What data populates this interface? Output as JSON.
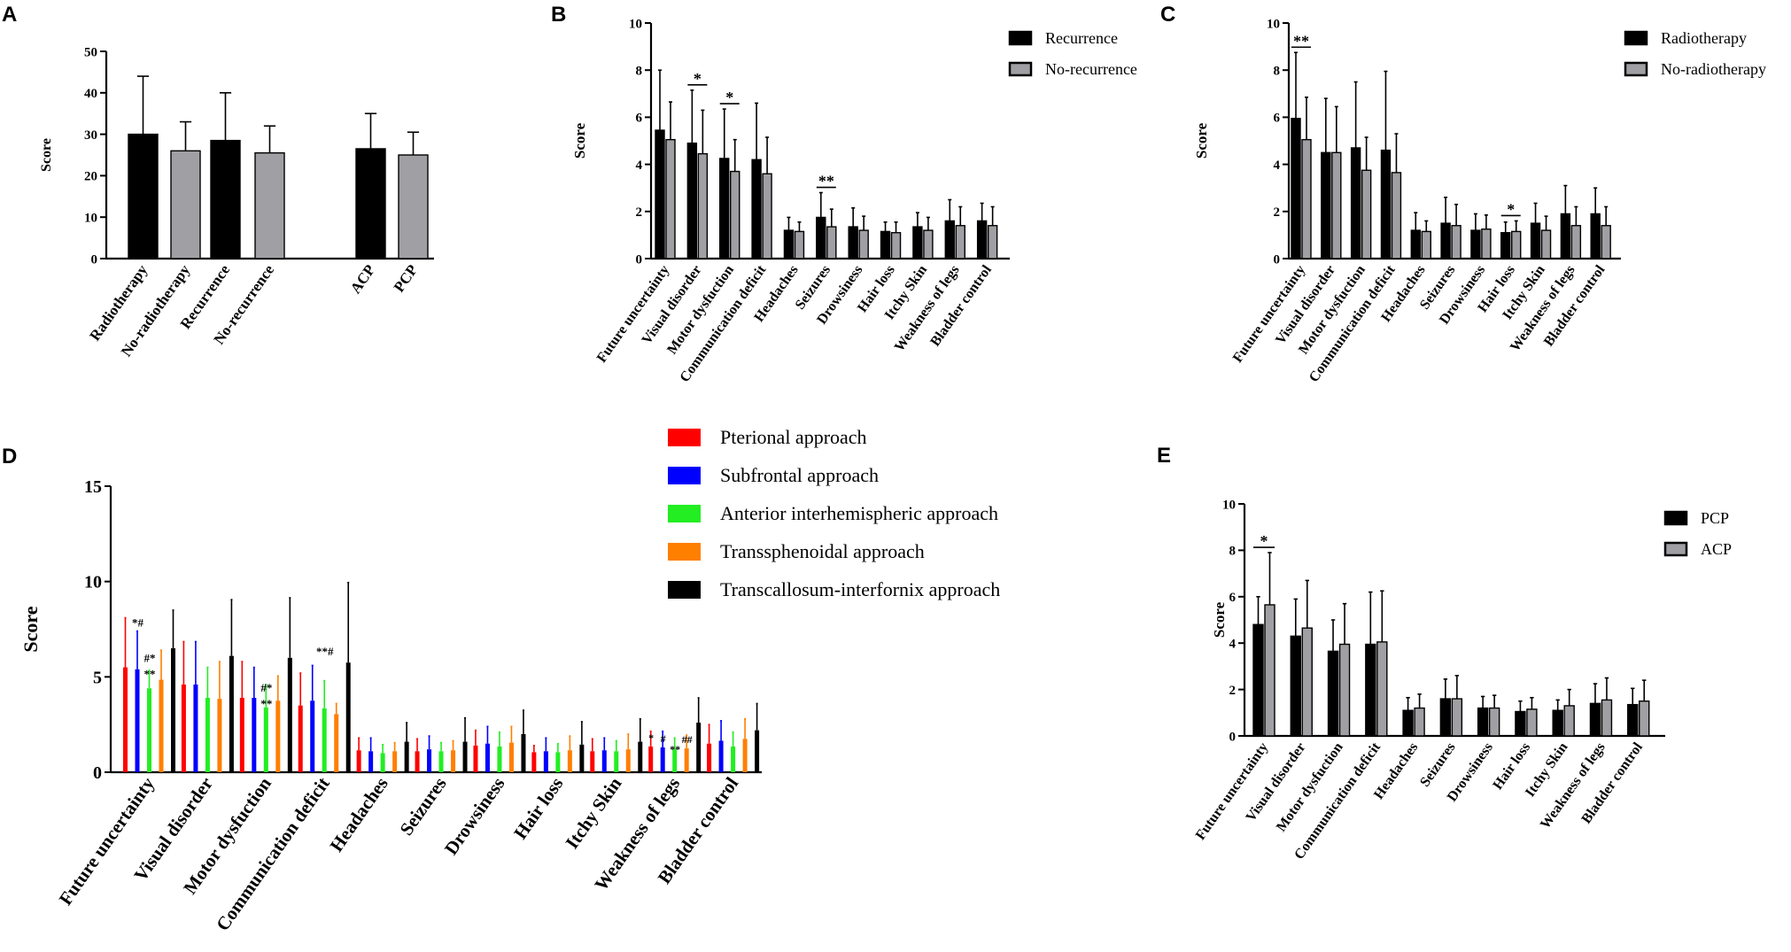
{
  "chart_data": [
    {
      "panel": "A",
      "type": "bar",
      "ylabel": "Score",
      "ylim": [
        0,
        50
      ],
      "yticks": [
        0,
        10,
        20,
        30,
        40,
        50
      ],
      "bars": [
        {
          "label": "Radiotherapy",
          "value": 30,
          "err": 14,
          "color": "#000000"
        },
        {
          "label": "No-radiotherapy",
          "value": 26,
          "err": 7,
          "color": "#a0a0a4"
        },
        {
          "label": "Recurrence",
          "value": 28.5,
          "err": 11.5,
          "color": "#000000"
        },
        {
          "label": "No-recurrence",
          "value": 25.5,
          "err": 6.5,
          "color": "#a0a0a4"
        },
        {
          "label": "ACP",
          "value": 26.5,
          "err": 8.5,
          "color": "#000000"
        },
        {
          "label": "PCP",
          "value": 25,
          "err": 5.5,
          "color": "#a0a0a4"
        }
      ]
    },
    {
      "panel": "B",
      "type": "bar",
      "ylabel": "Score",
      "ylim": [
        0,
        10
      ],
      "yticks": [
        0,
        2,
        4,
        6,
        8,
        10
      ],
      "categories": [
        "Future uncertainty",
        "Visual disorder",
        "Motor dysfuction",
        "Communication deficit",
        "Headaches",
        "Seizures",
        "Drowsiness",
        "Hair loss",
        "Itchy Skin",
        "Weakness of legs",
        "Bladder control"
      ],
      "series": [
        {
          "name": "Recurrence",
          "values": [
            5.45,
            4.9,
            4.25,
            4.2,
            1.2,
            1.75,
            1.35,
            1.15,
            1.35,
            1.6,
            1.6
          ],
          "errors": [
            2.55,
            2.25,
            2.1,
            2.4,
            0.55,
            1.05,
            0.8,
            0.4,
            0.6,
            0.9,
            0.75
          ]
        },
        {
          "name": "No-recurrence",
          "values": [
            5.05,
            4.45,
            3.7,
            3.6,
            1.15,
            1.35,
            1.2,
            1.1,
            1.2,
            1.4,
            1.4
          ],
          "errors": [
            1.6,
            1.85,
            1.35,
            1.55,
            0.4,
            0.75,
            0.6,
            0.45,
            0.55,
            0.8,
            0.8
          ]
        }
      ],
      "annotations": [
        {
          "category": 1,
          "text": "*"
        },
        {
          "category": 2,
          "text": "*"
        },
        {
          "category": 5,
          "text": "**"
        }
      ]
    },
    {
      "panel": "C",
      "type": "bar",
      "ylabel": "Score",
      "ylim": [
        0,
        10
      ],
      "yticks": [
        0,
        2,
        4,
        6,
        8,
        10
      ],
      "categories": [
        "Future uncertainty",
        "Visual disorder",
        "Motor dysfuction",
        "Communication deficit",
        "Headaches",
        "Seizures",
        "Drowsiness",
        "Hair loss",
        "Itchy Skin",
        "Weakness of legs",
        "Bladder control"
      ],
      "series": [
        {
          "name": "Radiotherapy",
          "values": [
            5.95,
            4.5,
            4.7,
            4.6,
            1.2,
            1.5,
            1.2,
            1.1,
            1.5,
            1.9,
            1.9
          ],
          "errors": [
            2.8,
            2.3,
            2.8,
            3.35,
            0.75,
            1.1,
            0.7,
            0.45,
            0.85,
            1.2,
            1.1
          ]
        },
        {
          "name": "No-radiotherapy",
          "values": [
            5.05,
            4.5,
            3.75,
            3.65,
            1.15,
            1.4,
            1.25,
            1.15,
            1.2,
            1.4,
            1.4
          ],
          "errors": [
            1.8,
            1.95,
            1.4,
            1.65,
            0.45,
            0.9,
            0.6,
            0.45,
            0.6,
            0.8,
            0.8
          ]
        }
      ],
      "annotations": [
        {
          "category": 0,
          "text": "**"
        },
        {
          "category": 7,
          "text": "*"
        }
      ]
    },
    {
      "panel": "D",
      "type": "bar",
      "ylabel": "Score",
      "ylim": [
        0,
        15
      ],
      "yticks": [
        0,
        5,
        10,
        15
      ],
      "categories": [
        "Future uncertainty",
        "Visual disorder",
        "Motor dysfuction",
        "Communication deficit",
        "Headaches",
        "Seizures",
        "Drowsiness",
        "Hair loss",
        "Itchy Skin",
        "Weakness of legs",
        "Bladder control"
      ],
      "series": [
        {
          "name": "Pterional approach",
          "color": "#ff0000",
          "values": [
            5.5,
            4.6,
            3.9,
            3.5,
            1.15,
            1.1,
            1.4,
            1.05,
            1.1,
            1.35,
            1.5
          ],
          "errors": [
            2.6,
            2.25,
            1.9,
            1.7,
            0.65,
            0.65,
            0.8,
            0.35,
            0.65,
            0.8,
            1.0
          ]
        },
        {
          "name": "Subfrontal approach",
          "color": "#0000ff",
          "values": [
            5.4,
            4.6,
            3.9,
            3.75,
            1.1,
            1.2,
            1.5,
            1.1,
            1.15,
            1.3,
            1.65
          ],
          "errors": [
            2.0,
            2.25,
            1.6,
            1.85,
            0.7,
            0.7,
            0.9,
            0.7,
            0.65,
            0.85,
            1.05
          ]
        },
        {
          "name": "Anterior interhemispheric approach",
          "color": "#22ee22",
          "values": [
            4.4,
            3.9,
            3.4,
            3.35,
            1.0,
            1.1,
            1.35,
            1.05,
            1.1,
            1.2,
            1.35
          ],
          "errors": [
            0.95,
            1.6,
            1.2,
            1.45,
            0.45,
            0.45,
            0.75,
            0.45,
            0.55,
            0.6,
            0.75
          ]
        },
        {
          "name": "Transsphenoidal approach",
          "color": "#ff7f00",
          "values": [
            4.85,
            3.85,
            3.75,
            3.05,
            1.1,
            1.15,
            1.55,
            1.15,
            1.2,
            1.25,
            1.75
          ],
          "errors": [
            1.55,
            1.95,
            1.3,
            0.55,
            0.45,
            0.5,
            0.85,
            0.75,
            0.8,
            0.7,
            1.05
          ]
        },
        {
          "name": "Transcallosum-interfornix approach",
          "color": "#000000",
          "values": [
            6.5,
            6.1,
            6.0,
            5.75,
            1.6,
            1.6,
            2.0,
            1.45,
            1.6,
            2.6,
            2.2
          ],
          "errors": [
            2.0,
            2.95,
            3.15,
            4.2,
            1.0,
            1.25,
            1.25,
            1.2,
            1.2,
            1.3,
            1.4
          ]
        }
      ],
      "annotations": [
        {
          "category": 0,
          "text": "*#"
        },
        {
          "category": 0,
          "text": "#*"
        },
        {
          "category": 0,
          "text": "**"
        },
        {
          "category": 2,
          "text": "#*"
        },
        {
          "category": 2,
          "text": "**"
        },
        {
          "category": 3,
          "text": "**#"
        },
        {
          "category": 9,
          "text": "*"
        },
        {
          "category": 9,
          "text": "#"
        },
        {
          "category": 9,
          "text": "**"
        },
        {
          "category": 9,
          "text": "##"
        }
      ]
    },
    {
      "panel": "E",
      "type": "bar",
      "ylabel": "Score",
      "ylim": [
        0,
        10
      ],
      "yticks": [
        0,
        2,
        4,
        6,
        8,
        10
      ],
      "categories": [
        "Future uncertainty",
        "Visual disorder",
        "Motor dysfuction",
        "Communication deficit",
        "Headaches",
        "Seizures",
        "Drowsiness",
        "Hair loss",
        "Itchy Skin",
        "Weakness of legs",
        "Bladder control"
      ],
      "series": [
        {
          "name": "PCP",
          "values": [
            4.8,
            4.3,
            3.65,
            3.95,
            1.1,
            1.6,
            1.2,
            1.05,
            1.1,
            1.4,
            1.35
          ],
          "errors": [
            1.2,
            1.6,
            1.35,
            2.25,
            0.55,
            0.85,
            0.5,
            0.45,
            0.45,
            0.85,
            0.7
          ]
        },
        {
          "name": "ACP",
          "values": [
            5.65,
            4.65,
            3.95,
            4.05,
            1.2,
            1.6,
            1.2,
            1.15,
            1.3,
            1.55,
            1.5
          ],
          "errors": [
            2.25,
            2.05,
            1.75,
            2.2,
            0.6,
            1.0,
            0.55,
            0.5,
            0.7,
            0.95,
            0.9
          ]
        }
      ],
      "annotations": [
        {
          "category": 0,
          "text": "*"
        }
      ]
    }
  ]
}
